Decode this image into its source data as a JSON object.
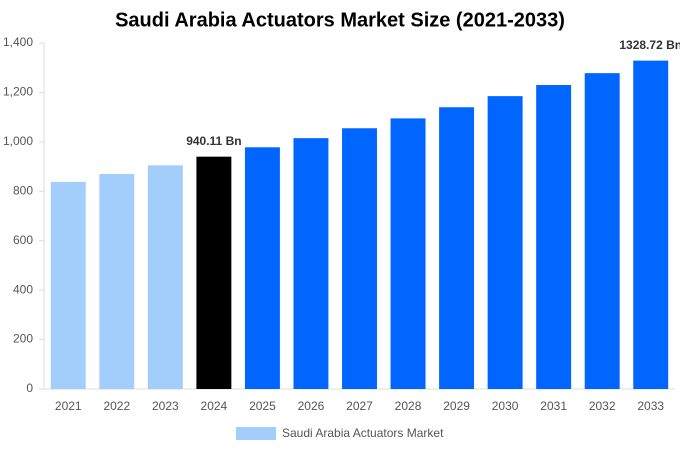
{
  "chart_data": {
    "type": "bar",
    "title": "Saudi Arabia Actuators Market Size (2021-2033)",
    "categories": [
      "2021",
      "2022",
      "2023",
      "2024",
      "2025",
      "2026",
      "2027",
      "2028",
      "2029",
      "2030",
      "2031",
      "2032",
      "2033"
    ],
    "series": [
      {
        "name": "Saudi Arabia Actuators Market",
        "color": "#a3cdfb",
        "values": [
          838,
          870,
          905,
          940.11,
          978,
          1015,
          1055,
          1095,
          1140,
          1185,
          1230,
          1278,
          1328.72
        ],
        "value_labels": [
          null,
          null,
          null,
          "940.11 Bn",
          null,
          null,
          null,
          null,
          null,
          null,
          null,
          null,
          "1328.72 Bn"
        ],
        "bar_colors": [
          "#a3cdfb",
          "#a3cdfb",
          "#a3cdfb",
          "#000000",
          "#0066ff",
          "#0066ff",
          "#0066ff",
          "#0066ff",
          "#0066ff",
          "#0066ff",
          "#0066ff",
          "#0066ff",
          "#0066ff"
        ]
      }
    ],
    "ylim": [
      0,
      1400
    ],
    "yticks": [
      0,
      200,
      400,
      600,
      800,
      {
        "value": 1000,
        "label": "1,000"
      },
      {
        "value": 1200,
        "label": "1,200"
      },
      {
        "value": 1400,
        "label": "1,400"
      }
    ],
    "grid": false,
    "legend": "bottom"
  }
}
